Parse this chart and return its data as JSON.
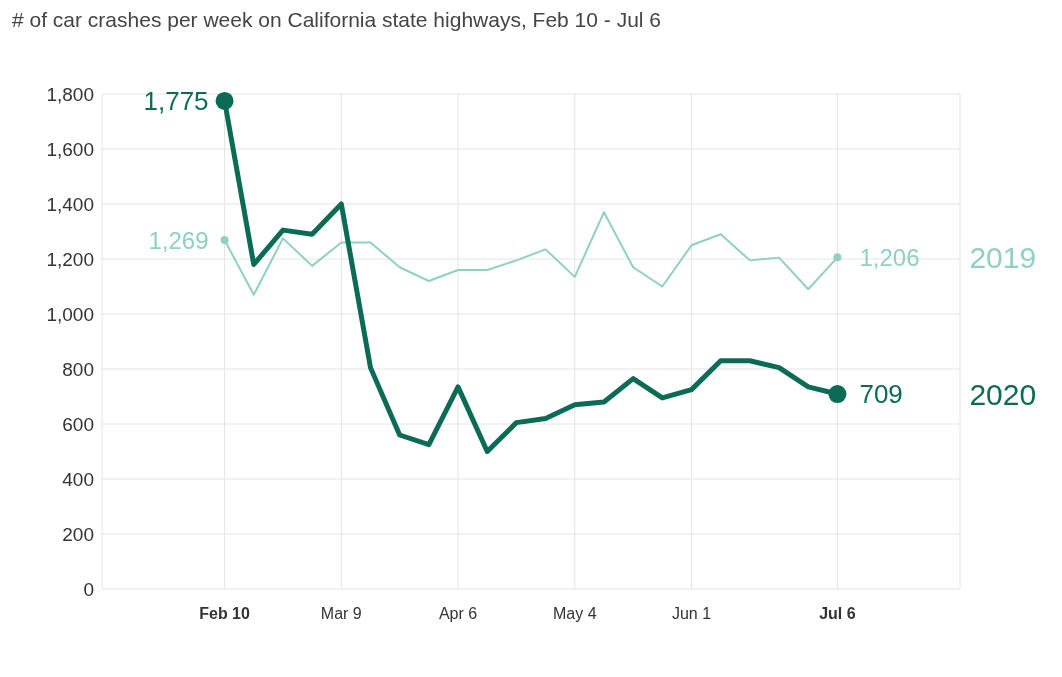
{
  "chart_data": {
    "type": "line",
    "title": "# of car crashes per week on California state highways, Feb 10 - Jul 6",
    "categories": [
      "Feb 10",
      null,
      null,
      null,
      "Mar 9",
      null,
      null,
      null,
      "Apr 6",
      null,
      null,
      null,
      "May 4",
      null,
      null,
      null,
      "Jun 1",
      null,
      null,
      null,
      null,
      "Jul 6"
    ],
    "series": [
      {
        "name": "2019",
        "color": "#8fd0c4",
        "values": [
          1269,
          1070,
          1275,
          1175,
          1260,
          1260,
          1170,
          1120,
          1160,
          1160,
          1195,
          1235,
          1135,
          1370,
          1170,
          1100,
          1250,
          1290,
          1195,
          1205,
          1090,
          1206
        ],
        "value_labels": [
          "1,269",
          null,
          null,
          null,
          null,
          null,
          null,
          null,
          null,
          null,
          null,
          null,
          null,
          null,
          null,
          null,
          null,
          null,
          null,
          null,
          null,
          "1,206"
        ]
      },
      {
        "name": "2020",
        "color": "#0b6b57",
        "values": [
          1775,
          1180,
          1305,
          1290,
          1400,
          805,
          560,
          525,
          735,
          500,
          605,
          620,
          670,
          680,
          765,
          695,
          725,
          830,
          830,
          805,
          735,
          709
        ],
        "value_labels": [
          "1,775",
          null,
          null,
          null,
          null,
          null,
          null,
          null,
          null,
          null,
          null,
          null,
          null,
          null,
          null,
          null,
          null,
          null,
          null,
          null,
          null,
          "709"
        ]
      }
    ],
    "ylim": [
      0,
      1800
    ],
    "yticks": [
      0,
      200,
      400,
      600,
      800,
      {
        "value": 1000,
        "label": "1,000"
      },
      {
        "value": 1200,
        "label": "1,200"
      },
      {
        "value": 1400,
        "label": "1,400"
      },
      {
        "value": 1600,
        "label": "1,600"
      },
      {
        "value": 1800,
        "label": "1,800"
      }
    ],
    "grid": true
  }
}
